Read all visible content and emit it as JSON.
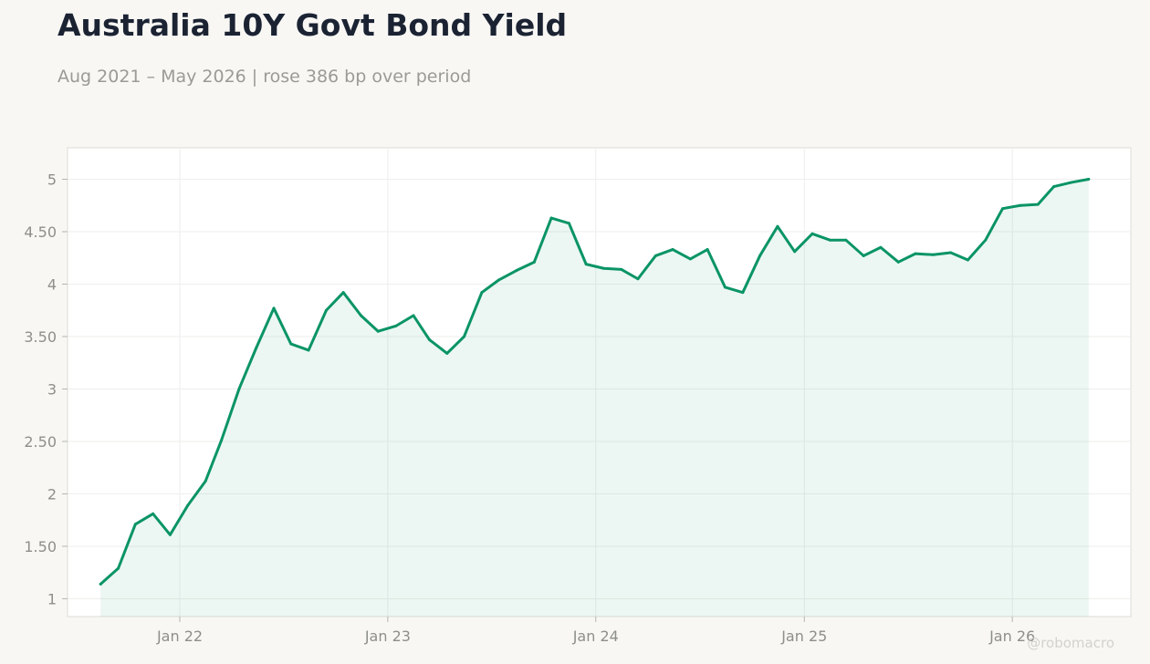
{
  "title": "Australia 10Y Govt Bond Yield",
  "subtitle": "Aug 2021 – May 2026 | rose 386 bp over period",
  "watermark": "@robomacro",
  "colors": {
    "line": "#0a9466",
    "fill": "#0a9466",
    "background": "#f8f7f4",
    "plot_background": "#ffffff",
    "grid": "#eeeeeb"
  },
  "chart_data": {
    "type": "area",
    "title": "Australia 10Y Govt Bond Yield",
    "xlabel": "",
    "ylabel": "",
    "grid": true,
    "legend": "none",
    "ylim": [
      0.83,
      5.3
    ],
    "xlim": [
      "2021-06-18",
      "2026-07-28"
    ],
    "yticks": [
      1,
      1.5,
      2,
      2.5,
      3,
      3.5,
      4,
      4.5,
      5
    ],
    "ytick_labels": [
      "1",
      "1.50",
      "2",
      "2.50",
      "3",
      "3.50",
      "4",
      "4.50",
      "5"
    ],
    "xticks": [
      "2022-01-01",
      "2023-01-01",
      "2024-01-01",
      "2025-01-01",
      "2026-01-01"
    ],
    "xtick_labels": [
      "Jan 22",
      "Jan 23",
      "Jan 24",
      "Jan 25",
      "Jan 26"
    ],
    "series": [
      {
        "x": [
          "2021-08",
          "2021-09",
          "2021-10",
          "2021-11",
          "2021-12",
          "2022-01",
          "2022-02",
          "2022-03",
          "2022-04",
          "2022-05",
          "2022-06",
          "2022-07",
          "2022-08",
          "2022-09",
          "2022-10",
          "2022-11",
          "2022-12",
          "2023-01",
          "2023-02",
          "2023-03",
          "2023-04",
          "2023-05",
          "2023-06",
          "2023-07",
          "2023-08",
          "2023-09",
          "2023-10",
          "2023-11",
          "2023-12",
          "2024-01",
          "2024-02",
          "2024-03",
          "2024-04",
          "2024-05",
          "2024-06",
          "2024-07",
          "2024-08",
          "2024-09",
          "2024-10",
          "2024-11",
          "2024-12",
          "2025-01",
          "2025-02",
          "2025-03",
          "2025-04",
          "2025-05",
          "2025-06",
          "2025-07",
          "2025-08",
          "2025-09",
          "2025-10",
          "2025-11",
          "2025-12",
          "2026-01",
          "2026-02",
          "2026-03",
          "2026-04",
          "2026-05"
        ],
        "values": [
          1.14,
          1.29,
          1.71,
          1.81,
          1.61,
          1.89,
          2.12,
          2.51,
          3.0,
          3.39,
          3.77,
          3.43,
          3.37,
          3.75,
          3.92,
          3.7,
          3.55,
          3.6,
          3.7,
          3.47,
          3.34,
          3.5,
          3.92,
          4.04,
          4.13,
          4.21,
          4.63,
          4.58,
          4.19,
          4.15,
          4.14,
          4.05,
          4.27,
          4.33,
          4.24,
          4.33,
          3.97,
          3.92,
          4.27,
          4.55,
          4.31,
          4.48,
          4.42,
          4.42,
          4.27,
          4.35,
          4.21,
          4.29,
          4.28,
          4.3,
          4.23,
          4.42,
          4.72,
          4.75,
          4.76,
          4.93,
          4.97,
          5.0
        ]
      }
    ]
  }
}
